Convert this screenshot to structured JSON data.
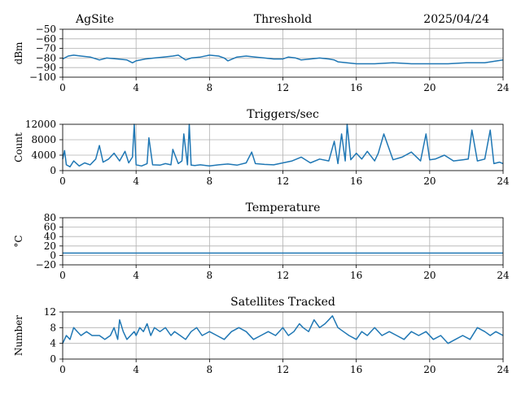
{
  "header": {
    "site": "AgSite",
    "date": "2025/04/24"
  },
  "colors": {
    "series": "#1f77b4",
    "grid": "#b0b0b0",
    "axis": "#000000"
  },
  "chart_data": [
    {
      "id": "threshold",
      "type": "line",
      "title": "Threshold",
      "xlabel": "",
      "ylabel": "dBm",
      "xlim": [
        0,
        24
      ],
      "ylim": [
        -100,
        -50
      ],
      "xticks": [
        0,
        4,
        8,
        12,
        16,
        20,
        24
      ],
      "yticks": [
        -100,
        -90,
        -80,
        -70,
        -60,
        -50
      ],
      "ytick_labels": [
        "−100",
        "−90",
        "−80",
        "−70",
        "−60",
        "−50"
      ],
      "grid": true,
      "series": [
        {
          "x": [
            0,
            0.3,
            0.6,
            1.0,
            1.5,
            2.0,
            2.4,
            3.0,
            3.5,
            3.8,
            4.0,
            4.5,
            5.0,
            5.5,
            6.0,
            6.3,
            6.7,
            7.0,
            7.5,
            8.0,
            8.5,
            8.8,
            9.0,
            9.5,
            10.0,
            10.5,
            11.0,
            11.5,
            12.0,
            12.3,
            12.7,
            13.0,
            13.5,
            14.0,
            14.5,
            14.8,
            15.0,
            16.0,
            17.0,
            18.0,
            19.0,
            20.0,
            21.0,
            22.0,
            23.0,
            24.0
          ],
          "y": [
            -81,
            -78,
            -77,
            -78,
            -79,
            -82,
            -80,
            -81,
            -82,
            -85,
            -83,
            -81,
            -80,
            -79,
            -78,
            -77,
            -82,
            -80,
            -79,
            -77,
            -78,
            -80,
            -83,
            -79,
            -78,
            -79,
            -80,
            -81,
            -81,
            -79,
            -80,
            -82,
            -81,
            -80,
            -81,
            -82,
            -84,
            -86,
            -86,
            -85,
            -86,
            -86,
            -86,
            -85,
            -85,
            -82
          ]
        }
      ]
    },
    {
      "id": "triggers",
      "type": "line",
      "title": "Triggers/sec",
      "xlabel": "",
      "ylabel": "Count",
      "xlim": [
        0,
        24
      ],
      "ylim": [
        0,
        12000
      ],
      "xticks": [
        0,
        4,
        8,
        12,
        16,
        20,
        24
      ],
      "yticks": [
        0,
        4000,
        8000,
        12000
      ],
      "ytick_labels": [
        "0",
        "4000",
        "8000",
        "12000"
      ],
      "grid": true,
      "series": [
        {
          "x": [
            0,
            0.1,
            0.2,
            0.4,
            0.6,
            0.9,
            1.2,
            1.5,
            1.8,
            2.0,
            2.2,
            2.5,
            2.8,
            3.1,
            3.4,
            3.6,
            3.8,
            3.9,
            4.0,
            4.3,
            4.6,
            4.7,
            4.9,
            5.3,
            5.6,
            5.9,
            6.0,
            6.3,
            6.5,
            6.6,
            6.8,
            6.9,
            7.0,
            7.2,
            7.5,
            8.0,
            8.5,
            9.0,
            9.5,
            10.0,
            10.3,
            10.5,
            11.0,
            11.5,
            12.0,
            12.5,
            13.0,
            13.5,
            14.0,
            14.5,
            14.8,
            15.0,
            15.2,
            15.4,
            15.5,
            15.7,
            16.0,
            16.3,
            16.6,
            17.0,
            17.2,
            17.5,
            18.0,
            18.5,
            19.0,
            19.5,
            19.8,
            20.0,
            20.3,
            20.8,
            21.3,
            21.8,
            22.1,
            22.3,
            22.6,
            23.0,
            23.3,
            23.5,
            23.8,
            24.0
          ],
          "y": [
            3000,
            5200,
            1500,
            1000,
            2500,
            1200,
            2000,
            1500,
            3000,
            6500,
            2200,
            3000,
            4500,
            2500,
            5000,
            2000,
            3500,
            12000,
            1500,
            1200,
            1800,
            8500,
            1500,
            1400,
            1800,
            1500,
            5500,
            1800,
            2500,
            9500,
            1500,
            12000,
            1400,
            1300,
            1500,
            1200,
            1500,
            1700,
            1400,
            2000,
            4800,
            1800,
            1600,
            1500,
            2000,
            2500,
            3500,
            2000,
            3000,
            2500,
            7600,
            1800,
            9500,
            2500,
            12000,
            2800,
            4500,
            3000,
            5000,
            2500,
            4500,
            9500,
            2800,
            3500,
            4800,
            2500,
            9500,
            2800,
            3000,
            4000,
            2500,
            2800,
            3000,
            10500,
            2500,
            3000,
            10500,
            1800,
            2200,
            1800
          ]
        }
      ]
    },
    {
      "id": "temperature",
      "type": "line",
      "title": "Temperature",
      "xlabel": "",
      "ylabel": "°C",
      "xlim": [
        0,
        24
      ],
      "ylim": [
        -20,
        80
      ],
      "xticks": [
        0,
        4,
        8,
        12,
        16,
        20,
        24
      ],
      "yticks": [
        -20,
        0,
        20,
        40,
        60,
        80
      ],
      "ytick_labels": [
        "−20",
        "0",
        "20",
        "40",
        "60",
        "80"
      ],
      "grid": true,
      "series": [
        {
          "x": [
            0,
            24
          ],
          "y": [
            5,
            5
          ]
        }
      ]
    },
    {
      "id": "satellites",
      "type": "line",
      "title": "Satellites Tracked",
      "xlabel": "",
      "ylabel": "Number",
      "xlim": [
        0,
        24
      ],
      "ylim": [
        0,
        12
      ],
      "xticks": [
        0,
        4,
        8,
        12,
        16,
        20,
        24
      ],
      "yticks": [
        0,
        4,
        8,
        12
      ],
      "ytick_labels": [
        "0",
        "4",
        "8",
        "12"
      ],
      "grid": true,
      "series": [
        {
          "x": [
            0,
            0.2,
            0.4,
            0.6,
            0.8,
            1.0,
            1.3,
            1.6,
            2.0,
            2.3,
            2.6,
            2.8,
            3.0,
            3.1,
            3.3,
            3.5,
            3.7,
            3.9,
            4.0,
            4.2,
            4.4,
            4.6,
            4.8,
            5.0,
            5.3,
            5.6,
            5.9,
            6.1,
            6.4,
            6.7,
            7.0,
            7.3,
            7.6,
            8.0,
            8.4,
            8.8,
            9.2,
            9.6,
            10.0,
            10.4,
            10.8,
            11.2,
            11.6,
            12.0,
            12.3,
            12.6,
            12.9,
            13.1,
            13.4,
            13.7,
            14.0,
            14.3,
            14.5,
            14.7,
            15.0,
            15.3,
            15.6,
            16.0,
            16.3,
            16.6,
            17.0,
            17.4,
            17.8,
            18.2,
            18.6,
            19.0,
            19.4,
            19.8,
            20.2,
            20.6,
            21.0,
            21.4,
            21.8,
            22.2,
            22.6,
            23.0,
            23.3,
            23.6,
            24.0
          ],
          "y": [
            4,
            6,
            5,
            8,
            7,
            6,
            7,
            6,
            6,
            5,
            6,
            8,
            5,
            10,
            7,
            5,
            6,
            7,
            6,
            8,
            7,
            9,
            6,
            8,
            7,
            8,
            6,
            7,
            6,
            5,
            7,
            8,
            6,
            7,
            6,
            5,
            7,
            8,
            7,
            5,
            6,
            7,
            6,
            8,
            6,
            7,
            9,
            8,
            7,
            10,
            8,
            9,
            10,
            11,
            8,
            7,
            6,
            5,
            7,
            6,
            8,
            6,
            7,
            6,
            5,
            7,
            6,
            7,
            5,
            6,
            4,
            5,
            6,
            5,
            8,
            7,
            6,
            7,
            6
          ]
        }
      ]
    }
  ]
}
